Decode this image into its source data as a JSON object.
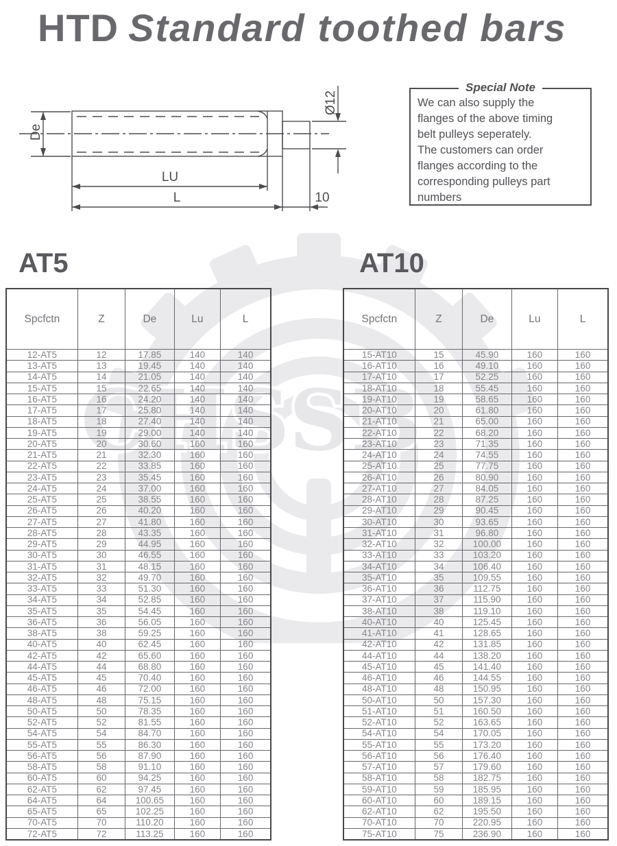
{
  "title": {
    "prefix": "HTD",
    "main": "Standard toothed bars"
  },
  "drawing": {
    "labels": {
      "de": "De",
      "lu": "LU",
      "l": "L",
      "dia": "Ø12",
      "ten": "10"
    }
  },
  "note": {
    "title": "Special Note",
    "lines": [
      "We can also supply the",
      "flanges of the above timing",
      "belt pulleys seperately.",
      "The customers can order",
      "flanges according to the",
      "corresponding pulleys part",
      "numbers"
    ]
  },
  "watermark": {
    "text": "CHSSB"
  },
  "tables": [
    {
      "heading": "AT5",
      "columns": [
        "Spcfctn",
        "Z",
        "De",
        "Lu",
        "L"
      ],
      "rows": [
        [
          "12-AT5",
          "12",
          "17.85",
          "140",
          "140"
        ],
        [
          "13-AT5",
          "13",
          "19.45",
          "140",
          "140"
        ],
        [
          "14-AT5",
          "14",
          "21.05",
          "140",
          "140"
        ],
        [
          "15-AT5",
          "15",
          "22.65",
          "140",
          "140"
        ],
        [
          "16-AT5",
          "16",
          "24.20",
          "140",
          "140"
        ],
        [
          "17-AT5",
          "17",
          "25.80",
          "140",
          "140"
        ],
        [
          "18-AT5",
          "18",
          "27.40",
          "140",
          "140"
        ],
        [
          "19-AT5",
          "19",
          "29.00",
          "140",
          "140"
        ],
        [
          "20-AT5",
          "20",
          "30.60",
          "160",
          "160"
        ],
        [
          "21-AT5",
          "21",
          "32.30",
          "160",
          "160"
        ],
        [
          "22-AT5",
          "22",
          "33.85",
          "160",
          "160"
        ],
        [
          "23-AT5",
          "23",
          "35.45",
          "160",
          "160"
        ],
        [
          "24-AT5",
          "24",
          "37.00",
          "160",
          "160"
        ],
        [
          "25-AT5",
          "25",
          "38.55",
          "160",
          "160"
        ],
        [
          "26-AT5",
          "26",
          "40.20",
          "160",
          "160"
        ],
        [
          "27-AT5",
          "27",
          "41.80",
          "160",
          "160"
        ],
        [
          "28-AT5",
          "28",
          "43.35",
          "160",
          "160"
        ],
        [
          "29-AT5",
          "29",
          "44.95",
          "160",
          "160"
        ],
        [
          "30-AT5",
          "30",
          "46.55",
          "160",
          "160"
        ],
        [
          "31-AT5",
          "31",
          "48.15",
          "160",
          "160"
        ],
        [
          "32-AT5",
          "32",
          "49.70",
          "160",
          "160"
        ],
        [
          "33-AT5",
          "33",
          "51.30",
          "160",
          "160"
        ],
        [
          "34-AT5",
          "34",
          "52.85",
          "160",
          "160"
        ],
        [
          "35-AT5",
          "35",
          "54.45",
          "160",
          "160"
        ],
        [
          "36-AT5",
          "36",
          "56.05",
          "160",
          "160"
        ],
        [
          "38-AT5",
          "38",
          "59.25",
          "160",
          "160"
        ],
        [
          "40-AT5",
          "40",
          "62.45",
          "160",
          "160"
        ],
        [
          "42-AT5",
          "42",
          "65.60",
          "160",
          "160"
        ],
        [
          "44-AT5",
          "44",
          "68.80",
          "160",
          "160"
        ],
        [
          "45-AT5",
          "45",
          "70.40",
          "160",
          "160"
        ],
        [
          "46-AT5",
          "46",
          "72.00",
          "160",
          "160"
        ],
        [
          "48-AT5",
          "48",
          "75.15",
          "160",
          "160"
        ],
        [
          "50-AT5",
          "50",
          "78.35",
          "160",
          "160"
        ],
        [
          "52-AT5",
          "52",
          "81.55",
          "160",
          "160"
        ],
        [
          "54-AT5",
          "54",
          "84.70",
          "160",
          "160"
        ],
        [
          "55-AT5",
          "55",
          "86.30",
          "160",
          "160"
        ],
        [
          "56-AT5",
          "56",
          "87.90",
          "160",
          "160"
        ],
        [
          "58-AT5",
          "58",
          "91.10",
          "160",
          "160"
        ],
        [
          "60-AT5",
          "60",
          "94.25",
          "160",
          "160"
        ],
        [
          "62-AT5",
          "62",
          "97.45",
          "160",
          "160"
        ],
        [
          "64-AT5",
          "64",
          "100.65",
          "160",
          "160"
        ],
        [
          "65-AT5",
          "65",
          "102.25",
          "160",
          "160"
        ],
        [
          "70-AT5",
          "70",
          "110.20",
          "160",
          "160"
        ],
        [
          "72-AT5",
          "72",
          "113.25",
          "160",
          "160"
        ]
      ]
    },
    {
      "heading": "AT10",
      "columns": [
        "Spcfctn",
        "Z",
        "De",
        "Lu",
        "L"
      ],
      "rows": [
        [
          "15-AT10",
          "15",
          "45.90",
          "160",
          "160"
        ],
        [
          "16-AT10",
          "16",
          "49.10",
          "160",
          "160"
        ],
        [
          "17-AT10",
          "17",
          "52.25",
          "160",
          "160"
        ],
        [
          "18-AT10",
          "18",
          "55.45",
          "160",
          "160"
        ],
        [
          "19-AT10",
          "19",
          "58.65",
          "160",
          "160"
        ],
        [
          "20-AT10",
          "20",
          "61.80",
          "160",
          "160"
        ],
        [
          "21-AT10",
          "21",
          "65.00",
          "160",
          "160"
        ],
        [
          "22-AT10",
          "22",
          "68.20",
          "160",
          "160"
        ],
        [
          "23-AT10",
          "23",
          "71.35",
          "160",
          "160"
        ],
        [
          "24-AT10",
          "24",
          "74.55",
          "160",
          "160"
        ],
        [
          "25-AT10",
          "25",
          "77.75",
          "160",
          "160"
        ],
        [
          "26-AT10",
          "26",
          "80.90",
          "160",
          "160"
        ],
        [
          "27-AT10",
          "27",
          "84.05",
          "160",
          "160"
        ],
        [
          "28-AT10",
          "28",
          "87.25",
          "160",
          "160"
        ],
        [
          "29-AT10",
          "29",
          "90.45",
          "160",
          "160"
        ],
        [
          "30-AT10",
          "30",
          "93.65",
          "160",
          "160"
        ],
        [
          "31-AT10",
          "31",
          "96.80",
          "160",
          "160"
        ],
        [
          "32-AT10",
          "32",
          "100.00",
          "160",
          "160"
        ],
        [
          "33-AT10",
          "33",
          "103.20",
          "160",
          "160"
        ],
        [
          "34-AT10",
          "34",
          "106.40",
          "160",
          "160"
        ],
        [
          "35-AT10",
          "35",
          "109.55",
          "160",
          "160"
        ],
        [
          "36-AT10",
          "36",
          "112.75",
          "160",
          "160"
        ],
        [
          "37-AT10",
          "37",
          "115.90",
          "160",
          "160"
        ],
        [
          "38-AT10",
          "38",
          "119.10",
          "160",
          "160"
        ],
        [
          "40-AT10",
          "40",
          "125.45",
          "160",
          "160"
        ],
        [
          "41-AT10",
          "41",
          "128.65",
          "160",
          "160"
        ],
        [
          "42-AT10",
          "42",
          "131.85",
          "160",
          "160"
        ],
        [
          "44-AT10",
          "44",
          "138.20",
          "160",
          "160"
        ],
        [
          "45-AT10",
          "45",
          "141.40",
          "160",
          "160"
        ],
        [
          "46-AT10",
          "46",
          "144.55",
          "160",
          "160"
        ],
        [
          "48-AT10",
          "48",
          "150.95",
          "160",
          "160"
        ],
        [
          "50-AT10",
          "50",
          "157.30",
          "160",
          "160"
        ],
        [
          "51-AT10",
          "51",
          "160.50",
          "160",
          "160"
        ],
        [
          "52-AT10",
          "52",
          "163.65",
          "160",
          "160"
        ],
        [
          "54-AT10",
          "54",
          "170.05",
          "160",
          "160"
        ],
        [
          "55-AT10",
          "55",
          "173.20",
          "160",
          "160"
        ],
        [
          "56-AT10",
          "56",
          "176.40",
          "160",
          "160"
        ],
        [
          "57-AT10",
          "57",
          "179.60",
          "160",
          "160"
        ],
        [
          "58-AT10",
          "58",
          "182.75",
          "160",
          "160"
        ],
        [
          "59-AT10",
          "59",
          "185.95",
          "160",
          "160"
        ],
        [
          "60-AT10",
          "60",
          "189.15",
          "160",
          "160"
        ],
        [
          "62-AT10",
          "62",
          "195.50",
          "160",
          "160"
        ],
        [
          "70-AT10",
          "70",
          "220.95",
          "160",
          "160"
        ],
        [
          "75-AT10",
          "75",
          "236.90",
          "160",
          "160"
        ]
      ]
    }
  ]
}
